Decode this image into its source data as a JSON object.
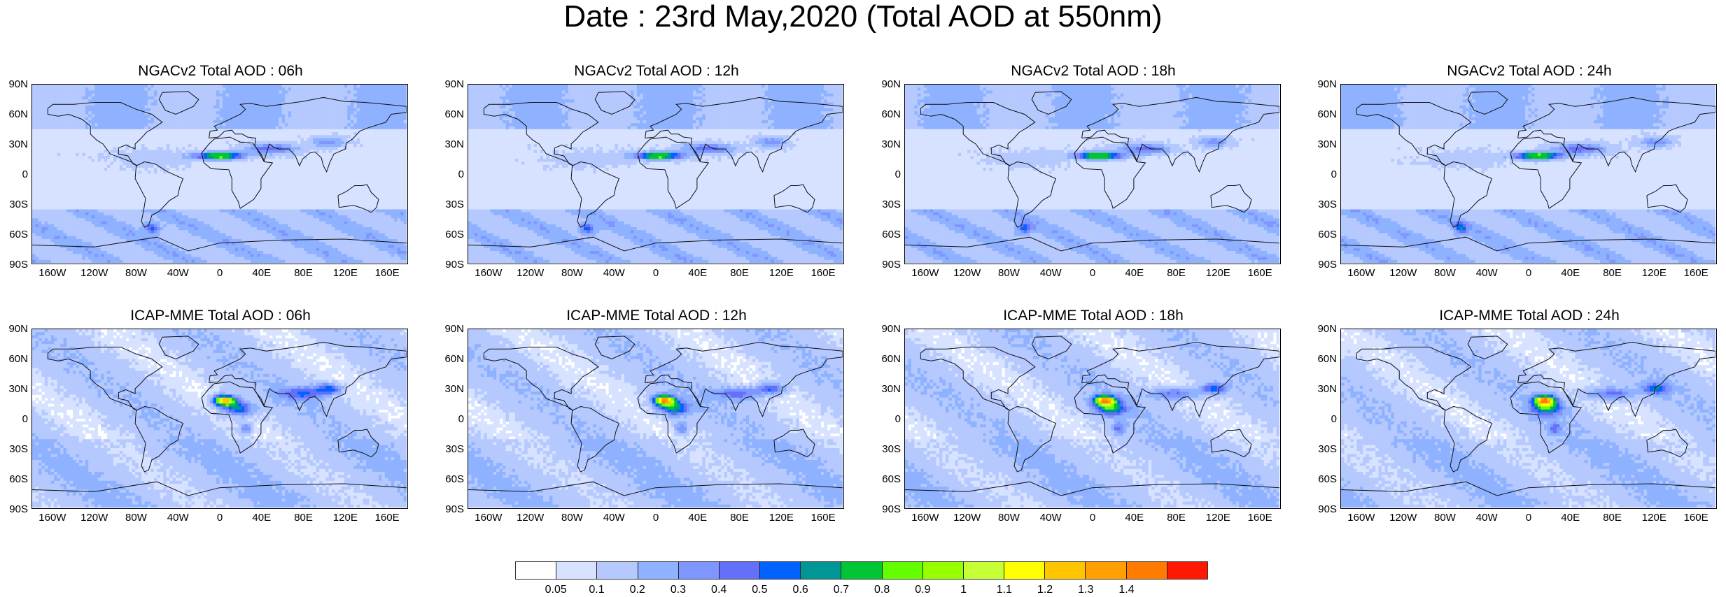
{
  "title": "Date : 23rd May,2020 (Total AOD at 550nm)",
  "panels": [
    {
      "model": "NGACv2",
      "title": "NGACv2 Total AOD : 06h"
    },
    {
      "model": "NGACv2",
      "title": "NGACv2 Total AOD : 12h"
    },
    {
      "model": "NGACv2",
      "title": "NGACv2 Total AOD : 18h"
    },
    {
      "model": "NGACv2",
      "title": "NGACv2 Total AOD : 24h"
    },
    {
      "model": "ICAP-MME",
      "title": "ICAP-MME Total AOD : 06h"
    },
    {
      "model": "ICAP-MME",
      "title": "ICAP-MME Total AOD : 12h"
    },
    {
      "model": "ICAP-MME",
      "title": "ICAP-MME Total AOD : 18h"
    },
    {
      "model": "ICAP-MME",
      "title": "ICAP-MME Total AOD : 24h"
    }
  ],
  "lat_ticks": [
    "90N",
    "60N",
    "30N",
    "0",
    "30S",
    "60S",
    "90S"
  ],
  "lon_ticks": [
    "160W",
    "120W",
    "80W",
    "40W",
    "0",
    "40E",
    "80E",
    "120E",
    "160E"
  ],
  "colorbar": {
    "colors": [
      "#ffffff",
      "#d6e2ff",
      "#b5c9ff",
      "#8eb2ff",
      "#7f96ff",
      "#6370f8",
      "#0063ff",
      "#009696",
      "#00c633",
      "#63ff00",
      "#96ff00",
      "#c6ff33",
      "#ffff00",
      "#ffc600",
      "#ffa000",
      "#ff7c00",
      "#ff1900"
    ],
    "labels": [
      "0.05",
      "0.1",
      "0.2",
      "0.3",
      "0.4",
      "0.5",
      "0.6",
      "0.7",
      "0.8",
      "0.9",
      "1",
      "1.1",
      "1.2",
      "1.3",
      "1.4"
    ]
  }
}
